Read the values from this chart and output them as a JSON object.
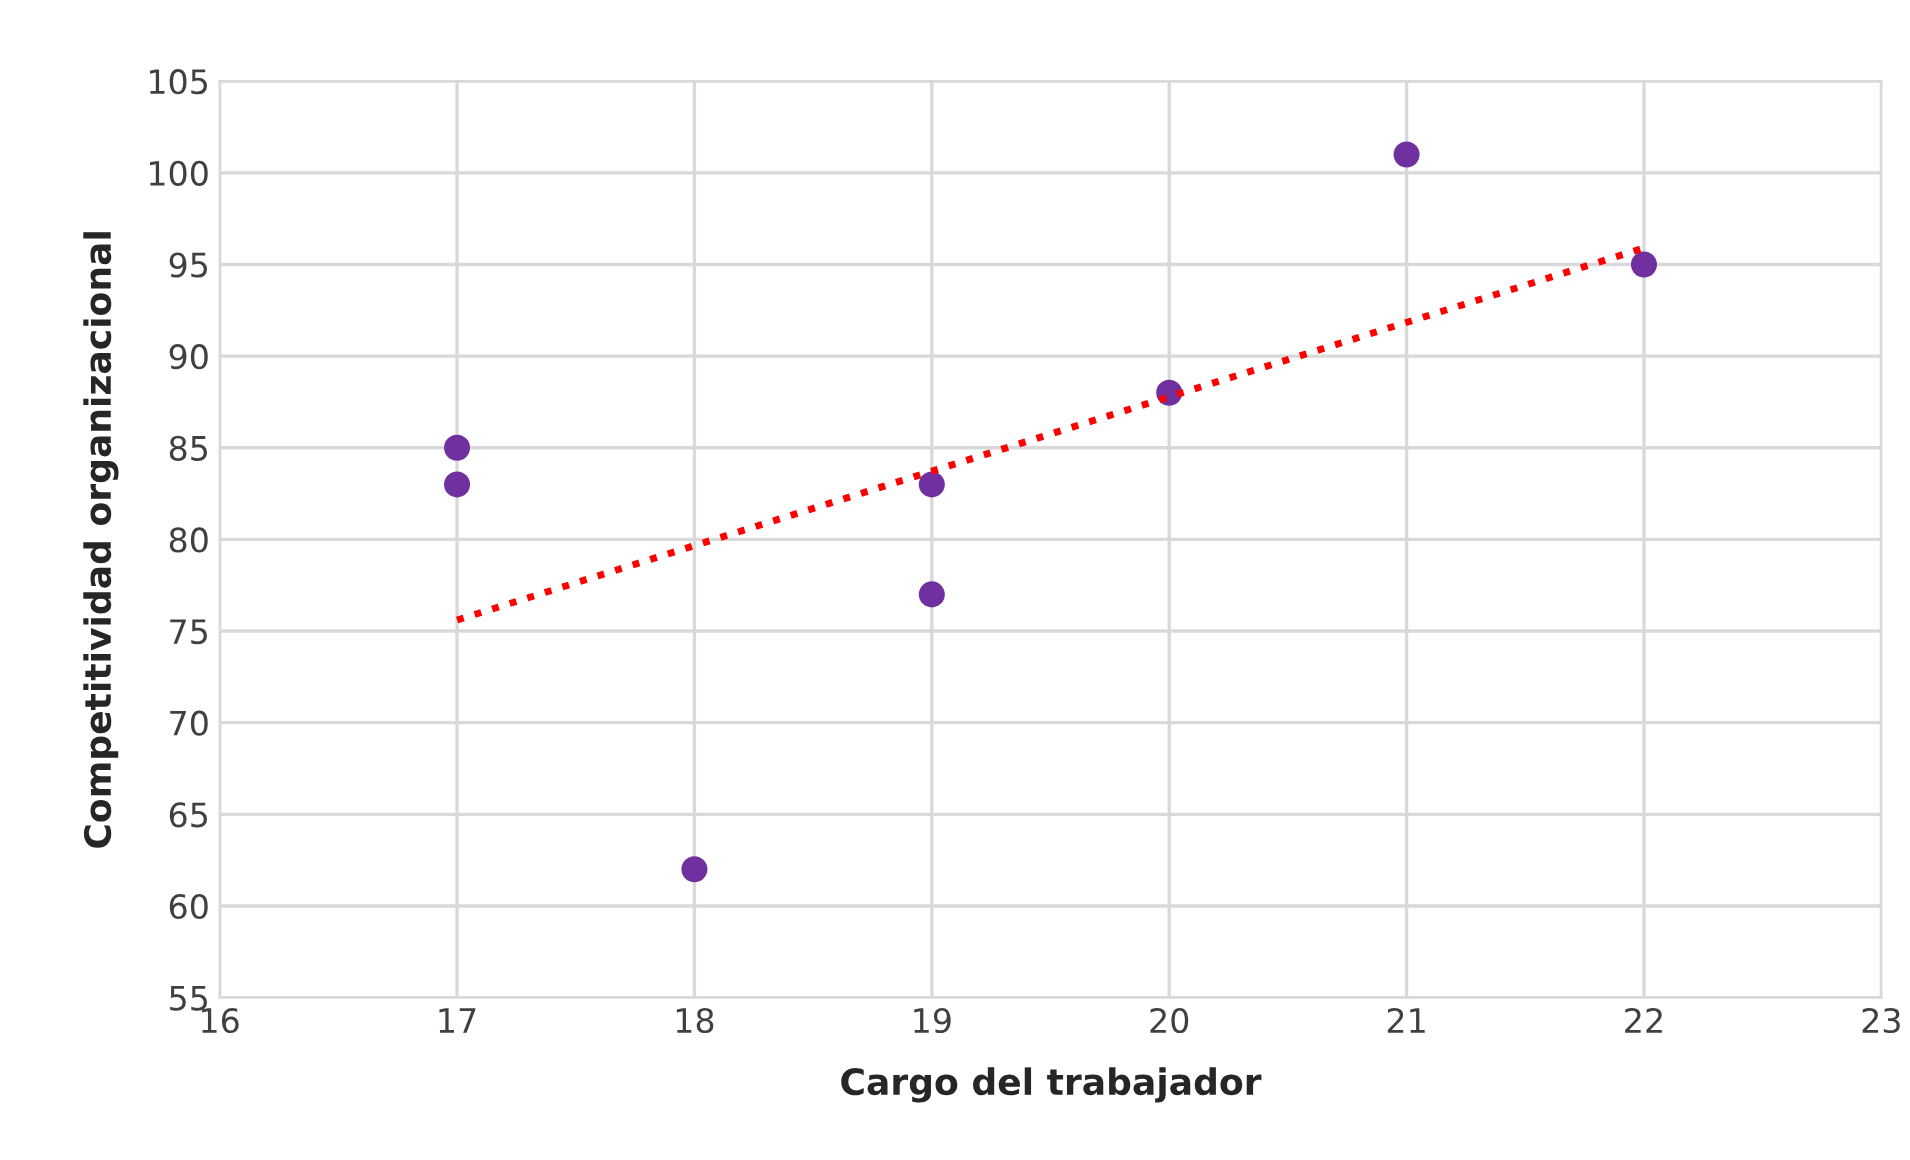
{
  "chart_data": {
    "type": "scatter",
    "xlabel": "Cargo del trabajador",
    "ylabel": "Competitividad organizacional",
    "series": [
      {
        "color": "#7030a0",
        "x": [
          17,
          17,
          18,
          19,
          19,
          20,
          21,
          22
        ],
        "values": [
          85,
          83,
          62,
          83,
          77,
          88,
          101,
          95
        ],
        "marker": "circle"
      },
      {
        "type": "line",
        "color": "#ff0000",
        "x": [
          17,
          22
        ],
        "values": [
          75.6,
          95.9
        ],
        "line_style": "dotted",
        "marker": "none"
      }
    ],
    "xlim": [
      16,
      23
    ],
    "xticks": [
      16,
      17,
      18,
      19,
      20,
      21,
      22,
      23
    ],
    "ylim": [
      55,
      105
    ],
    "yticks": [
      55,
      60,
      65,
      70,
      75,
      80,
      85,
      90,
      95,
      100,
      105
    ],
    "grid": true
  }
}
